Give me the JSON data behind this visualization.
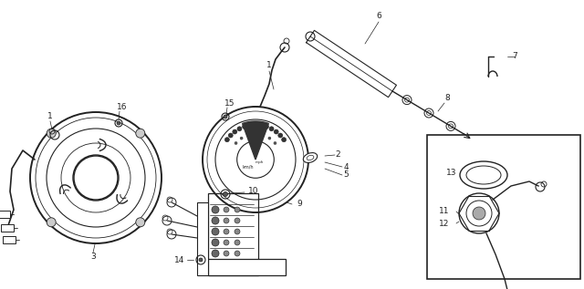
{
  "bg_color": "#ffffff",
  "line_color": "#222222",
  "fig_width": 6.4,
  "fig_height": 3.17,
  "dpi": 100
}
